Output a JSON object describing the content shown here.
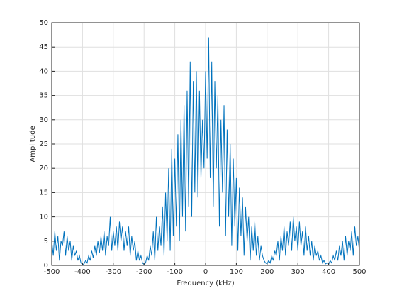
{
  "chart_data": {
    "type": "line",
    "xlabel": "Frequency (kHz)",
    "ylabel": "Amplitude",
    "color": "#0072bd",
    "grid": true,
    "xlim": [
      -500,
      500
    ],
    "ylim": [
      0,
      50
    ],
    "xticks": [
      -500,
      -400,
      -300,
      -200,
      -100,
      0,
      100,
      200,
      300,
      400,
      500
    ],
    "yticks": [
      0,
      5,
      10,
      15,
      20,
      25,
      30,
      35,
      40,
      45,
      50
    ],
    "x": [
      -500,
      -495,
      -490,
      -485,
      -480,
      -475,
      -470,
      -465,
      -460,
      -455,
      -450,
      -445,
      -440,
      -435,
      -430,
      -425,
      -420,
      -415,
      -410,
      -405,
      -400,
      -395,
      -390,
      -385,
      -380,
      -375,
      -370,
      -365,
      -360,
      -355,
      -350,
      -345,
      -340,
      -335,
      -330,
      -325,
      -320,
      -315,
      -310,
      -305,
      -300,
      -295,
      -290,
      -285,
      -280,
      -275,
      -270,
      -265,
      -260,
      -255,
      -250,
      -245,
      -240,
      -235,
      -230,
      -225,
      -220,
      -215,
      -210,
      -205,
      -200,
      -195,
      -190,
      -185,
      -180,
      -175,
      -170,
      -165,
      -160,
      -155,
      -150,
      -145,
      -140,
      -135,
      -130,
      -125,
      -120,
      -115,
      -110,
      -105,
      -100,
      -95,
      -90,
      -85,
      -80,
      -75,
      -70,
      -65,
      -60,
      -55,
      -50,
      -45,
      -40,
      -35,
      -30,
      -25,
      -20,
      -15,
      -10,
      -5,
      0,
      5,
      10,
      15,
      20,
      25,
      30,
      35,
      40,
      45,
      50,
      55,
      60,
      65,
      70,
      75,
      80,
      85,
      90,
      95,
      100,
      105,
      110,
      115,
      120,
      125,
      130,
      135,
      140,
      145,
      150,
      155,
      160,
      165,
      170,
      175,
      180,
      185,
      190,
      195,
      200,
      205,
      210,
      215,
      220,
      225,
      230,
      235,
      240,
      245,
      250,
      255,
      260,
      265,
      270,
      275,
      280,
      285,
      290,
      295,
      300,
      305,
      310,
      315,
      320,
      325,
      330,
      335,
      340,
      345,
      350,
      355,
      360,
      365,
      370,
      375,
      380,
      385,
      390,
      395,
      400,
      405,
      410,
      415,
      420,
      425,
      430,
      435,
      440,
      445,
      450,
      455,
      460,
      465,
      470,
      475,
      480,
      485,
      490,
      495,
      500
    ],
    "values": [
      5,
      2,
      7,
      3,
      6,
      1,
      5,
      4,
      7,
      2,
      6,
      3,
      5,
      1,
      4,
      2,
      3,
      1,
      2,
      0.5,
      0.2,
      0.3,
      1,
      0.5,
      2,
      1,
      3,
      1.5,
      4,
      2,
      5,
      2.5,
      6,
      3,
      7,
      2,
      6,
      4,
      10,
      3,
      7,
      4,
      8,
      3,
      9,
      5,
      8,
      3,
      7,
      4,
      8,
      2,
      6,
      3,
      5,
      1,
      3,
      1,
      2,
      0.5,
      0.2,
      0.5,
      2,
      1,
      4,
      2,
      7,
      1,
      10,
      3,
      8,
      4,
      12,
      2,
      15,
      5,
      20,
      3,
      24,
      6,
      22,
      8,
      27,
      5,
      30,
      10,
      33,
      7,
      36,
      12,
      42,
      10,
      38,
      15,
      40,
      14,
      36,
      18,
      30,
      20,
      40,
      22,
      47,
      18,
      42,
      12,
      38,
      20,
      35,
      8,
      30,
      15,
      33,
      6,
      28,
      10,
      25,
      4,
      22,
      8,
      18,
      3,
      16,
      6,
      14,
      2,
      12,
      5,
      10,
      1,
      8,
      3,
      9,
      2,
      6,
      1,
      4,
      2,
      1,
      0.5,
      0.3,
      1,
      0.5,
      2,
      1,
      3,
      2,
      5,
      1,
      6,
      3,
      8,
      2,
      7,
      4,
      9,
      3,
      10,
      5,
      8,
      3,
      9,
      4,
      7,
      2,
      8,
      3,
      6,
      2,
      5,
      1,
      4,
      2,
      3,
      1,
      2,
      0.5,
      1,
      0.3,
      0.5,
      0.2,
      1,
      0.5,
      2,
      1,
      3,
      1,
      4,
      2,
      5,
      1,
      6,
      2,
      5,
      3,
      7,
      2,
      8,
      4,
      6,
      3
    ]
  }
}
